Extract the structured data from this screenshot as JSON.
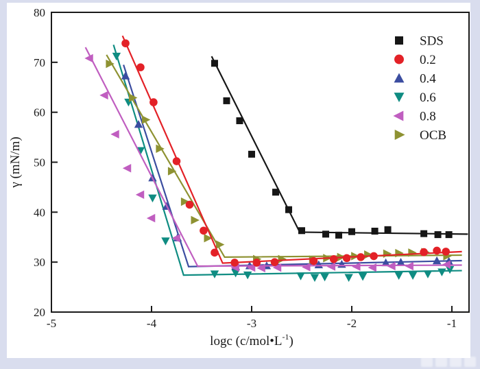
{
  "page": {
    "background": "#d9ddee",
    "canvas_background": "#ffffff",
    "watermark": {
      "present": true,
      "legible_text": "",
      "blocks": 4
    }
  },
  "chart_data": {
    "type": "scatter",
    "title": "",
    "xlabel": {
      "main": "logc (c/mol•L",
      "sup": "-1",
      "end": ")"
    },
    "ylabel": "γ (mN/m)",
    "xlim": [
      -5,
      -0.8
    ],
    "ylim": [
      20,
      80
    ],
    "xticks": [
      -5,
      -4,
      -3,
      -2,
      -1
    ],
    "xtick_labels": [
      "-5",
      "-4",
      "-3",
      "-2",
      "-1"
    ],
    "yticks": [
      20,
      30,
      40,
      50,
      60,
      70,
      80
    ],
    "ytick_labels": [
      "20",
      "30",
      "40",
      "50",
      "60",
      "70",
      "80"
    ],
    "grid": false,
    "legend_position": "top-right",
    "axis_color": "#1a1a1a",
    "series": [
      {
        "name": "0.6",
        "legend_label": "0.6",
        "color": "#0f8c82",
        "marker": "triangle-down",
        "line": [
          [
            -4.38,
            73.5
          ],
          [
            -3.68,
            27.4
          ],
          [
            -0.9,
            28.3
          ]
        ],
        "points": [
          [
            -4.35,
            71.2
          ],
          [
            -4.23,
            62.0
          ],
          [
            -4.11,
            52.3
          ],
          [
            -3.99,
            42.8
          ],
          [
            -3.86,
            34.2
          ],
          [
            -3.37,
            27.6
          ],
          [
            -3.16,
            27.8
          ],
          [
            -3.04,
            27.4
          ],
          [
            -2.51,
            27.2
          ],
          [
            -2.37,
            26.9
          ],
          [
            -2.27,
            27.0
          ],
          [
            -2.03,
            26.9
          ],
          [
            -1.89,
            27.1
          ],
          [
            -1.53,
            27.3
          ],
          [
            -1.39,
            27.3
          ],
          [
            -1.24,
            27.6
          ],
          [
            -1.1,
            28.0
          ],
          [
            -1.02,
            28.5
          ]
        ]
      },
      {
        "name": "0.4",
        "legend_label": "0.4",
        "color": "#3b4da0",
        "marker": "triangle-up",
        "line": [
          [
            -4.28,
            69.5
          ],
          [
            -3.63,
            29.1
          ],
          [
            -0.9,
            30.3
          ]
        ],
        "points": [
          [
            -4.26,
            67.3
          ],
          [
            -4.13,
            57.6
          ],
          [
            -3.99,
            46.9
          ],
          [
            -3.85,
            41.2
          ],
          [
            -3.74,
            34.9
          ],
          [
            -3.16,
            29.2
          ],
          [
            -3.02,
            29.3
          ],
          [
            -2.85,
            29.3
          ],
          [
            -2.33,
            29.5
          ],
          [
            -2.1,
            29.6
          ],
          [
            -1.66,
            29.9
          ],
          [
            -1.51,
            30.0
          ],
          [
            -1.15,
            30.3
          ],
          [
            -1.03,
            30.2
          ]
        ]
      },
      {
        "name": "0.8",
        "legend_label": "0.8",
        "color": "#c05ec0",
        "marker": "triangle-left",
        "line": [
          [
            -4.66,
            73.0
          ],
          [
            -3.54,
            29.2
          ],
          [
            -0.9,
            29.4
          ]
        ],
        "points": [
          [
            -4.62,
            70.8
          ],
          [
            -4.47,
            63.4
          ],
          [
            -4.36,
            55.6
          ],
          [
            -4.24,
            48.8
          ],
          [
            -4.11,
            43.5
          ],
          [
            -4.0,
            38.8
          ],
          [
            -3.75,
            34.8
          ],
          [
            -3.16,
            28.9
          ],
          [
            -3.0,
            28.9
          ],
          [
            -2.9,
            28.8
          ],
          [
            -2.74,
            28.9
          ],
          [
            -2.45,
            29.0
          ],
          [
            -2.2,
            29.1
          ],
          [
            -1.95,
            29.1
          ],
          [
            -1.79,
            28.9
          ],
          [
            -1.6,
            29.2
          ],
          [
            -1.42,
            29.2
          ],
          [
            -1.05,
            29.5
          ]
        ]
      },
      {
        "name": "OCB",
        "legend_label": "OCB",
        "color": "#8e9232",
        "marker": "triangle-right",
        "line": [
          [
            -4.45,
            71.5
          ],
          [
            -3.27,
            31.0
          ],
          [
            -0.9,
            31.4
          ]
        ],
        "points": [
          [
            -4.42,
            69.7
          ],
          [
            -4.19,
            62.9
          ],
          [
            -4.06,
            58.5
          ],
          [
            -3.92,
            52.7
          ],
          [
            -3.8,
            48.2
          ],
          [
            -3.67,
            42.1
          ],
          [
            -3.57,
            38.4
          ],
          [
            -3.44,
            34.8
          ],
          [
            -3.32,
            33.5
          ],
          [
            -2.95,
            30.6
          ],
          [
            -2.7,
            30.6
          ],
          [
            -2.39,
            30.5
          ],
          [
            -2.25,
            30.8
          ],
          [
            -2.11,
            31.0
          ],
          [
            -1.97,
            31.2
          ],
          [
            -1.84,
            31.5
          ],
          [
            -1.65,
            31.7
          ],
          [
            -1.53,
            31.8
          ],
          [
            -1.4,
            31.9
          ],
          [
            -1.27,
            32.0
          ],
          [
            -1.05,
            31.2
          ]
        ]
      },
      {
        "name": "0.2",
        "legend_label": "0.2",
        "color": "#e32127",
        "marker": "circle",
        "line": [
          [
            -4.29,
            75.3
          ],
          [
            -3.29,
            29.8
          ],
          [
            -0.9,
            32.1
          ]
        ],
        "points": [
          [
            -4.26,
            73.8
          ],
          [
            -4.11,
            69.0
          ],
          [
            -3.98,
            62.0
          ],
          [
            -3.75,
            50.2
          ],
          [
            -3.62,
            41.5
          ],
          [
            -3.48,
            36.3
          ],
          [
            -3.37,
            31.9
          ],
          [
            -3.17,
            29.9
          ],
          [
            -2.95,
            29.9
          ],
          [
            -2.77,
            30.0
          ],
          [
            -2.38,
            30.2
          ],
          [
            -2.18,
            30.6
          ],
          [
            -2.05,
            30.8
          ],
          [
            -1.91,
            31.0
          ],
          [
            -1.78,
            31.2
          ],
          [
            -1.28,
            32.0
          ],
          [
            -1.15,
            32.3
          ],
          [
            -1.06,
            32.1
          ]
        ]
      },
      {
        "name": "SDS",
        "legend_label": "SDS",
        "color": "#161616",
        "marker": "square",
        "line": [
          [
            -3.4,
            71.2
          ],
          [
            -2.52,
            36.0
          ],
          [
            -0.84,
            35.6
          ]
        ],
        "points": [
          [
            -3.37,
            69.8
          ],
          [
            -3.25,
            62.3
          ],
          [
            -3.12,
            58.3
          ],
          [
            -3.0,
            51.6
          ],
          [
            -2.76,
            44.0
          ],
          [
            -2.63,
            40.5
          ],
          [
            -2.5,
            36.3
          ],
          [
            -2.26,
            35.6
          ],
          [
            -2.13,
            35.4
          ],
          [
            -2.0,
            36.1
          ],
          [
            -1.77,
            36.2
          ],
          [
            -1.64,
            36.5
          ],
          [
            -1.28,
            35.7
          ],
          [
            -1.14,
            35.5
          ],
          [
            -1.03,
            35.5
          ]
        ]
      }
    ],
    "legend_order": [
      "SDS",
      "0.2",
      "0.4",
      "0.6",
      "0.8",
      "OCB"
    ]
  }
}
